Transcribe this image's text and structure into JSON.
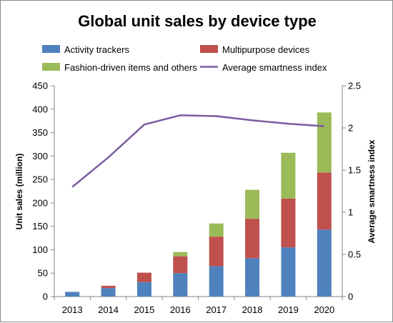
{
  "chart_data": {
    "type": "bar",
    "title": "Global unit sales by device type",
    "categories": [
      "2013",
      "2014",
      "2015",
      "2016",
      "2017",
      "2018",
      "2019",
      "2020"
    ],
    "stacked": true,
    "series": [
      {
        "name": "Activity trackers",
        "color": "#4f81bd",
        "values": [
          10,
          18,
          31,
          50,
          65,
          82,
          105,
          143
        ]
      },
      {
        "name": "Multipurpose devices",
        "color": "#c0504d",
        "values": [
          0,
          5,
          20,
          36,
          63,
          84,
          104,
          122
        ]
      },
      {
        "name": "Fashion-driven items and others",
        "color": "#9bbb59",
        "values": [
          0,
          0,
          0,
          9,
          28,
          62,
          98,
          128
        ]
      }
    ],
    "line_series": {
      "name": "Average smartness index",
      "color": "#7b5ca0",
      "axis": "secondary",
      "values": [
        1.3,
        1.65,
        2.04,
        2.15,
        2.14,
        2.09,
        2.05,
        2.02
      ]
    },
    "ylabel": "Unit sales (million)",
    "y2label": "Average smartness index",
    "ylim": [
      0,
      450
    ],
    "y_ticks": [
      0,
      50,
      100,
      150,
      200,
      250,
      300,
      350,
      400,
      450
    ],
    "y2lim": [
      0,
      2.5
    ],
    "y2_ticks": [
      "0",
      "0.5",
      "1",
      "1.5",
      "2",
      "2.5"
    ],
    "grid": false,
    "legend_position": "top"
  }
}
